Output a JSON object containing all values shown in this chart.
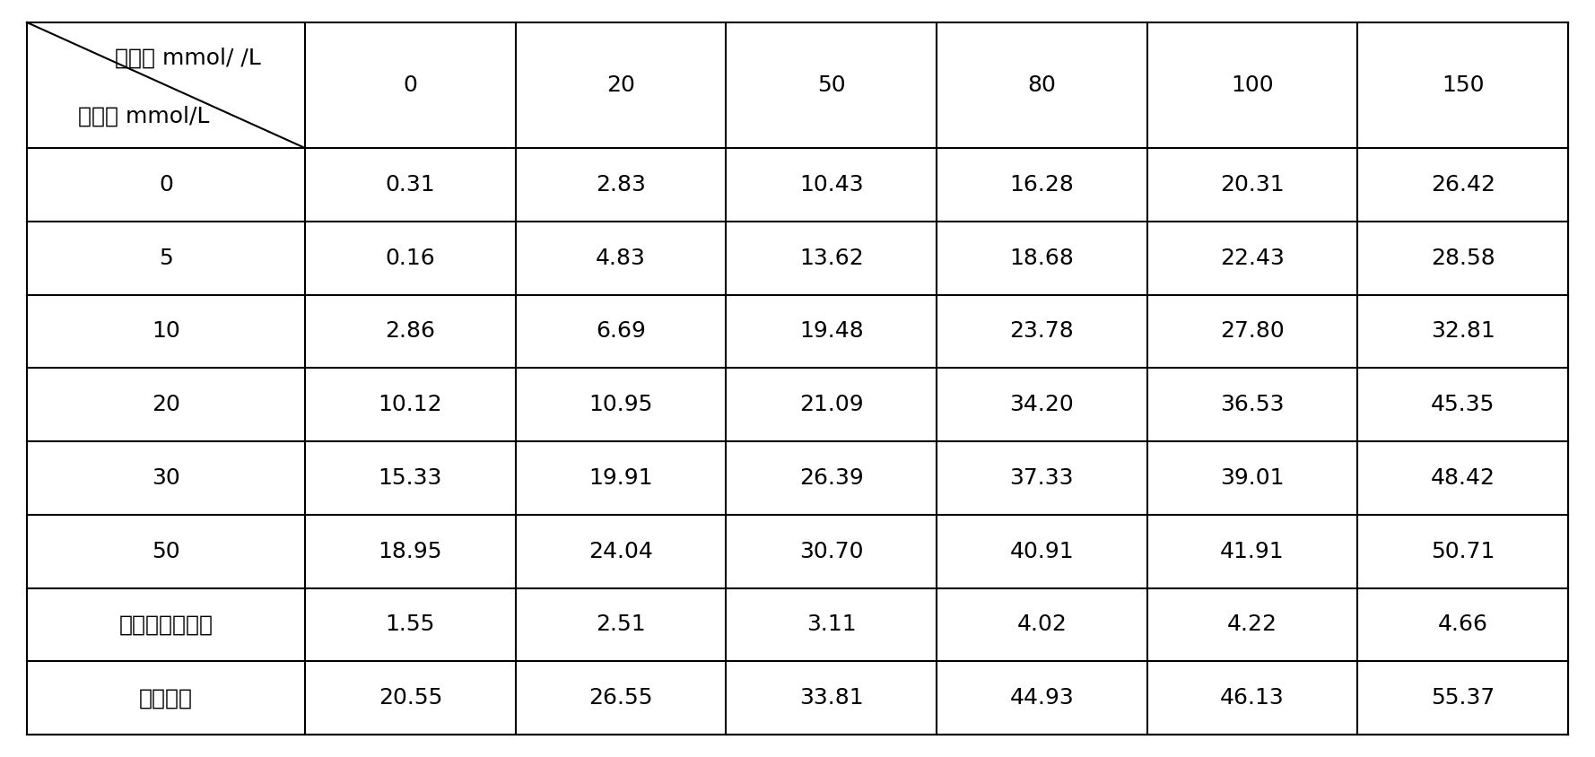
{
  "col_headers": [
    "0",
    "20",
    "50",
    "80",
    "100",
    "150"
  ],
  "row_headers": [
    "0",
    "5",
    "10",
    "20",
    "30",
    "50",
    "蜗馏水淋洗三次",
    "总去除率"
  ],
  "header_top": "柠橬酸 mmol/ /L",
  "header_left": "氯化铁 mmol/L",
  "data": [
    [
      "0.31",
      "2.83",
      "10.43",
      "16.28",
      "20.31",
      "26.42"
    ],
    [
      "0.16",
      "4.83",
      "13.62",
      "18.68",
      "22.43",
      "28.58"
    ],
    [
      "2.86",
      "6.69",
      "19.48",
      "23.78",
      "27.80",
      "32.81"
    ],
    [
      "10.12",
      "10.95",
      "21.09",
      "34.20",
      "36.53",
      "45.35"
    ],
    [
      "15.33",
      "19.91",
      "26.39",
      "37.33",
      "39.01",
      "48.42"
    ],
    [
      "18.95",
      "24.04",
      "30.70",
      "40.91",
      "41.91",
      "50.71"
    ],
    [
      "1.55",
      "2.51",
      "3.11",
      "4.02",
      "4.22",
      "4.66"
    ],
    [
      "20.55",
      "26.55",
      "33.81",
      "44.93",
      "46.13",
      "55.37"
    ]
  ],
  "bg_color": "#ffffff",
  "text_color": "#000000",
  "font_size": 18,
  "header_font_size": 18,
  "figsize": [
    17.78,
    8.44
  ],
  "dpi": 100
}
